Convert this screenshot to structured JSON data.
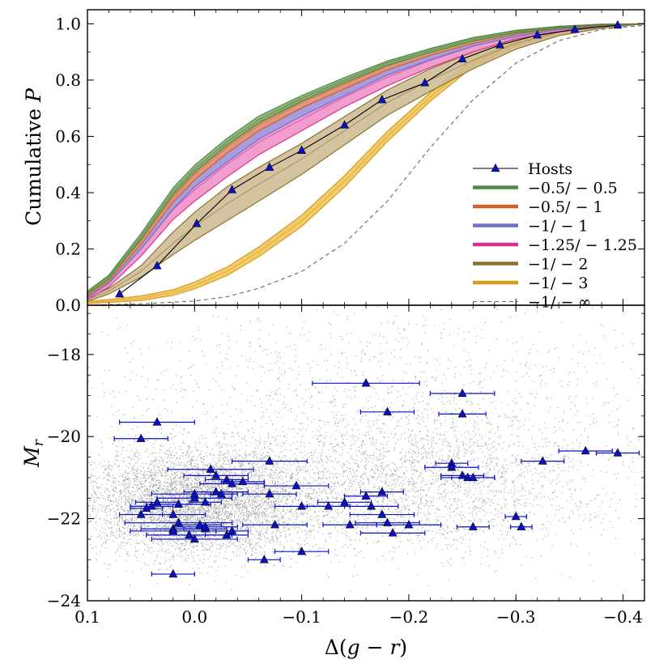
{
  "chart_data": [
    {
      "type": "line",
      "panel": "top",
      "ylabel": "Cumulative P",
      "ylabel_parts": [
        "Cumulative ",
        "P"
      ],
      "xlim": [
        0.1,
        -0.42
      ],
      "ylim": [
        0.0,
        1.05
      ],
      "yticks": [
        0.0,
        0.2,
        0.4,
        0.6,
        0.8,
        1.0
      ],
      "ytick_labels": [
        "0.0",
        "0.2",
        "0.4",
        "0.6",
        "0.8",
        "1.0"
      ],
      "x_grid": [
        0.1,
        0.08,
        0.05,
        0.02,
        0.0,
        -0.03,
        -0.06,
        -0.1,
        -0.14,
        -0.18,
        -0.22,
        -0.26,
        -0.3,
        -0.34,
        -0.38,
        -0.42
      ],
      "bands": [
        {
          "name": "-1/-3",
          "label": "−1/ − 3",
          "color": "#d99a1e",
          "fill": "#f0c34f",
          "mid": [
            0.01,
            0.015,
            0.025,
            0.045,
            0.07,
            0.12,
            0.19,
            0.3,
            0.44,
            0.6,
            0.74,
            0.86,
            0.93,
            0.97,
            0.99,
            1.0
          ],
          "half": [
            0.004,
            0.005,
            0.008,
            0.01,
            0.012,
            0.015,
            0.017,
            0.02,
            0.02,
            0.018,
            0.015,
            0.012,
            0.01,
            0.006,
            0.004,
            0.0
          ]
        },
        {
          "name": "-1/-2",
          "label": "−1/ − 2",
          "color": "#8b7430",
          "fill": "#cdb98f",
          "mid": [
            0.02,
            0.05,
            0.12,
            0.22,
            0.28,
            0.36,
            0.43,
            0.52,
            0.62,
            0.72,
            0.8,
            0.87,
            0.93,
            0.97,
            0.99,
            1.0
          ],
          "half": [
            0.006,
            0.01,
            0.02,
            0.04,
            0.05,
            0.06,
            0.06,
            0.055,
            0.05,
            0.045,
            0.04,
            0.03,
            0.02,
            0.012,
            0.006,
            0.0
          ]
        },
        {
          "name": "-1.25/-1.25",
          "label": "−1.25/ − 1.25",
          "color": "#d9328f",
          "fill": "#ee8cc6",
          "mid": [
            0.03,
            0.08,
            0.2,
            0.34,
            0.41,
            0.5,
            0.58,
            0.66,
            0.74,
            0.81,
            0.87,
            0.92,
            0.96,
            0.98,
            0.995,
            1.0
          ],
          "half": [
            0.01,
            0.015,
            0.025,
            0.035,
            0.04,
            0.045,
            0.045,
            0.04,
            0.035,
            0.03,
            0.025,
            0.02,
            0.014,
            0.01,
            0.004,
            0.0
          ]
        },
        {
          "name": "-1/-1",
          "label": "−1/ − 1",
          "color": "#7070c8",
          "fill": "#9c9ce0",
          "mid": [
            0.035,
            0.09,
            0.22,
            0.37,
            0.45,
            0.54,
            0.62,
            0.7,
            0.77,
            0.84,
            0.89,
            0.935,
            0.965,
            0.985,
            0.995,
            1.0
          ],
          "half": [
            0.008,
            0.012,
            0.02,
            0.028,
            0.03,
            0.032,
            0.03,
            0.028,
            0.025,
            0.022,
            0.018,
            0.014,
            0.01,
            0.006,
            0.003,
            0.0
          ]
        },
        {
          "name": "-0.5/-1",
          "label": "−0.5/ − 1",
          "color": "#d2602a",
          "fill": "#e8946a",
          "mid": [
            0.038,
            0.095,
            0.23,
            0.385,
            0.465,
            0.56,
            0.64,
            0.72,
            0.785,
            0.85,
            0.9,
            0.94,
            0.97,
            0.987,
            0.996,
            1.0
          ],
          "half": [
            0.006,
            0.01,
            0.014,
            0.018,
            0.02,
            0.02,
            0.02,
            0.018,
            0.016,
            0.014,
            0.012,
            0.01,
            0.007,
            0.004,
            0.002,
            0.0
          ]
        },
        {
          "name": "-0.5/-0.5",
          "label": "−0.5/ − 0.5",
          "color": "#4f8a45",
          "fill": "#80b070",
          "mid": [
            0.045,
            0.1,
            0.245,
            0.405,
            0.485,
            0.58,
            0.66,
            0.735,
            0.8,
            0.86,
            0.905,
            0.945,
            0.972,
            0.988,
            0.996,
            1.0
          ],
          "half": [
            0.005,
            0.007,
            0.01,
            0.012,
            0.012,
            0.012,
            0.012,
            0.01,
            0.009,
            0.008,
            0.007,
            0.006,
            0.004,
            0.003,
            0.001,
            0.0
          ]
        }
      ],
      "infinity_line": {
        "name": "-1/-inf",
        "label": "−1/ − ∞",
        "color": "#666666",
        "x": [
          0.1,
          0.05,
          0.0,
          -0.03,
          -0.06,
          -0.1,
          -0.14,
          -0.18,
          -0.22,
          -0.26,
          -0.3,
          -0.34,
          -0.38,
          -0.42
        ],
        "y": [
          0.0,
          0.005,
          0.015,
          0.03,
          0.06,
          0.12,
          0.22,
          0.37,
          0.56,
          0.73,
          0.86,
          0.94,
          0.98,
          0.995
        ]
      },
      "hosts": {
        "name": "Hosts",
        "label": "Hosts",
        "color": "#0a10c8",
        "x": [
          0.07,
          0.035,
          -0.002,
          -0.035,
          -0.07,
          -0.1,
          -0.14,
          -0.175,
          -0.215,
          -0.25,
          -0.285,
          -0.32,
          -0.355,
          -0.395
        ],
        "y": [
          0.04,
          0.14,
          0.29,
          0.41,
          0.49,
          0.55,
          0.64,
          0.73,
          0.79,
          0.875,
          0.925,
          0.96,
          0.98,
          0.995
        ]
      },
      "legend_order": [
        "Hosts",
        "-0.5/-0.5",
        "-0.5/-1",
        "-1/-1",
        "-1.25/-1.25",
        "-1/-2",
        "-1/-3",
        "-1/-inf"
      ],
      "legend_position": "lower-right"
    },
    {
      "type": "scatter",
      "panel": "bottom",
      "xlabel": "Δ(g − r)",
      "xlabel_parts": [
        "Δ(",
        "g",
        " − ",
        "r",
        ")"
      ],
      "ylabel": "M_r",
      "ylabel_parts": [
        "M",
        "r"
      ],
      "xlim": [
        0.1,
        -0.42
      ],
      "ylim": [
        -24.0,
        -16.8
      ],
      "xticks": [
        0.1,
        0.0,
        -0.1,
        -0.2,
        -0.3,
        -0.4
      ],
      "xtick_labels": [
        "0.1",
        "0.0",
        "−0.1",
        "−0.2",
        "−0.3",
        "−0.4"
      ],
      "yticks": [
        -18,
        -20,
        -22,
        -24
      ],
      "ytick_labels": [
        "−18",
        "−20",
        "−22",
        "−24"
      ],
      "background_points": {
        "count": 9000,
        "color": "#8a8a8a",
        "description_components": [
          {
            "weight": 0.55,
            "x_mean": 0.0,
            "x_sd": 0.055,
            "y_mean": -21.6,
            "y_sd": 0.65
          },
          {
            "weight": 0.3,
            "x_mean": -0.2,
            "x_sd": 0.09,
            "y_mean": -21.1,
            "y_sd": 0.85
          },
          {
            "weight": 0.15,
            "x_mean": -0.16,
            "x_sd": 0.17,
            "y_mean": -19.0,
            "y_sd": 1.3
          }
        ]
      },
      "hosts": {
        "color": "#0a10c8",
        "x": [
          0.05,
          0.04,
          0.05,
          0.045,
          0.035,
          0.02,
          0.015,
          0.02,
          0.02,
          0.005,
          0.0,
          0.0,
          -0.005,
          -0.01,
          -0.01,
          -0.015,
          -0.02,
          -0.02,
          -0.025,
          -0.03,
          -0.035,
          -0.045,
          -0.07,
          -0.07,
          -0.075,
          -0.095,
          -0.1,
          -0.1,
          -0.125,
          -0.14,
          -0.145,
          -0.16,
          -0.165,
          -0.175,
          -0.175,
          -0.18,
          -0.185,
          -0.2,
          -0.24,
          -0.24,
          -0.25,
          -0.255,
          -0.26,
          -0.26,
          -0.3,
          -0.305,
          -0.325,
          -0.365,
          -0.395,
          -0.16,
          -0.25,
          -0.18,
          -0.25,
          0.035,
          0.015,
          -0.01,
          -0.035,
          0.0,
          -0.03,
          -0.065,
          0.02
        ],
        "xerr": [
          0.025,
          0.02,
          0.02,
          0.015,
          0.02,
          0.03,
          0.05,
          0.03,
          0.04,
          0.04,
          0.035,
          0.04,
          0.02,
          0.02,
          0.03,
          0.04,
          0.03,
          0.03,
          0.01,
          0.02,
          0.03,
          0.02,
          0.025,
          0.035,
          0.03,
          0.03,
          0.025,
          0.025,
          0.02,
          0.025,
          0.025,
          0.02,
          0.025,
          0.02,
          0.03,
          0.03,
          0.03,
          0.03,
          0.015,
          0.025,
          0.02,
          0.025,
          0.02,
          0.015,
          0.01,
          0.01,
          0.02,
          0.025,
          0.02,
          0.05,
          0.03,
          0.025,
          0.022,
          0.035,
          0.03,
          0.015,
          0.015,
          0.04,
          0.02,
          0.015,
          0.02
        ],
        "y": [
          -20.05,
          -21.7,
          -21.9,
          -21.75,
          -21.6,
          -22.25,
          -22.1,
          -21.9,
          -22.3,
          -22.4,
          -21.5,
          -21.4,
          -22.15,
          -22.25,
          -22.2,
          -20.8,
          -20.95,
          -21.35,
          -21.4,
          -21.05,
          -21.15,
          -21.1,
          -21.4,
          -20.6,
          -22.15,
          -21.2,
          -21.7,
          -22.8,
          -21.7,
          -21.6,
          -22.15,
          -21.45,
          -21.7,
          -21.35,
          -21.9,
          -22.1,
          -22.35,
          -22.15,
          -20.65,
          -20.75,
          -20.95,
          -21.0,
          -21.0,
          -22.2,
          -21.95,
          -22.2,
          -20.6,
          -20.35,
          -20.4,
          -18.7,
          -18.95,
          -19.4,
          -19.45,
          -19.65,
          -21.65,
          -21.6,
          -22.3,
          -22.5,
          -22.4,
          -23.0,
          -23.35
        ],
        "xerr_sym": true
      }
    }
  ],
  "labels": {
    "legend_hosts": "Hosts"
  }
}
